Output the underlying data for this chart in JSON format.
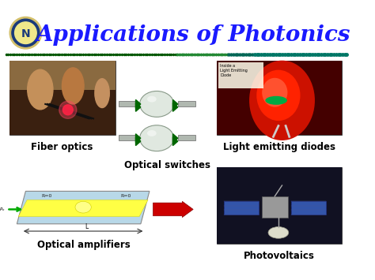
{
  "title": "Applications of Photonics",
  "title_color": "#1a1aff",
  "title_fontsize": 20,
  "background_color": "#ffffff",
  "labels": {
    "fiber_optics": "Fiber optics",
    "led": "Light emitting diodes",
    "optical_switches": "Optical switches",
    "optical_amplifiers": "Optical amplifiers",
    "photovoltaics": "Photovoltaics"
  },
  "label_fontsize": 8.5,
  "label_fontweight": "bold",
  "label_color": "#000000",
  "fiber_bg": "#3a2a1a",
  "fiber_mid": "#6b5535",
  "fiber_light_pink": "#cc5566",
  "led_bg_dark": "#1a0000",
  "led_red": "#cc0000",
  "led_red2": "#ff3300",
  "pv_bg": "#111122",
  "pv_sat_body": "#aaaaaa",
  "pv_panel": "#334488",
  "amp_blue": "#b8d8e8",
  "amp_yellow": "#ffff44",
  "amp_outline": "#888888",
  "dot_green_dark": "#005500",
  "dot_teal": "#006655",
  "dot_green_med": "#228833",
  "dot_teal2": "#007766",
  "switch_lens_fill": "#e0e8e0",
  "switch_lens_edge": "#889988",
  "switch_fiber_fill": "#b0b8b0",
  "switch_tri_color": "#006600"
}
